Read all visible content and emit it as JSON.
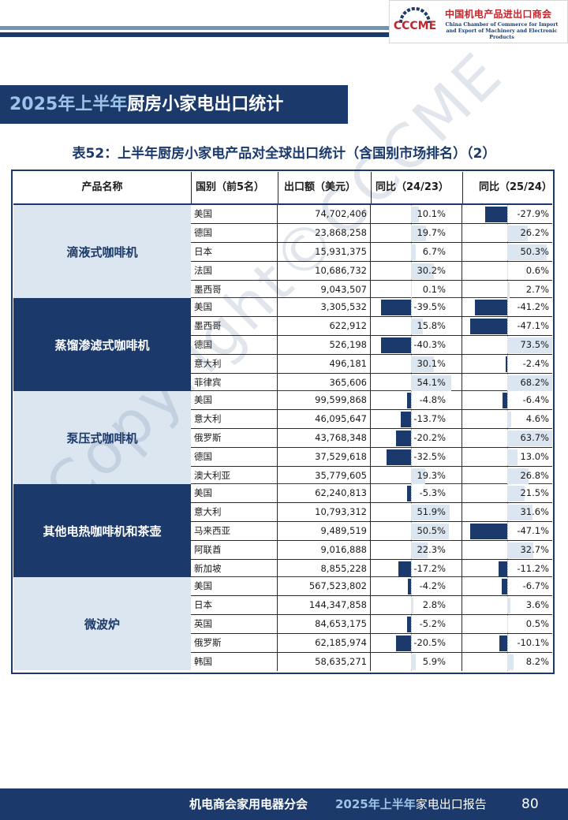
{
  "header": {
    "logo_mark": "CCCME",
    "org_cn": "中国机电产品进出口商会",
    "org_en_line1": "China Chamber of Commerce for Import",
    "org_en_line2": "and Export of Machinery and Electronic Products"
  },
  "section_title": {
    "year": "2025年上半年",
    "rest": "厨房小家电出口统计"
  },
  "table_title": "表52：上半年厨房小家电产品对全球出口统计（含国别市场排名）（2）",
  "columns": {
    "product": "产品名称",
    "country": "国别（前5名）",
    "value": "出口额（美元）",
    "g1": "同比（24/23）",
    "g2": "同比（25/24）"
  },
  "colors": {
    "dark": "#1b3a6b",
    "light": "#dce6f1"
  },
  "groups": [
    {
      "name": "滴液式咖啡机",
      "style": "light",
      "rows": [
        {
          "country": "美国",
          "value": "74,702,406",
          "g1": 10.1,
          "g1_text": "10.1%",
          "g2": -27.9,
          "g2_text": "-27.9%"
        },
        {
          "country": "德国",
          "value": "23,868,258",
          "g1": 19.7,
          "g1_text": "19.7%",
          "g2": 26.2,
          "g2_text": "26.2%"
        },
        {
          "country": "日本",
          "value": "15,931,375",
          "g1": 6.7,
          "g1_text": "6.7%",
          "g2": 50.3,
          "g2_text": "50.3%"
        },
        {
          "country": "法国",
          "value": "10,686,732",
          "g1": 30.2,
          "g1_text": "30.2%",
          "g2": 0.6,
          "g2_text": "0.6%"
        },
        {
          "country": "墨西哥",
          "value": "9,043,507",
          "g1": 0.1,
          "g1_text": "0.1%",
          "g2": 2.7,
          "g2_text": "2.7%"
        }
      ]
    },
    {
      "name": "蒸馏渗滤式咖啡机",
      "style": "dark",
      "rows": [
        {
          "country": "美国",
          "value": "3,305,532",
          "g1": -39.5,
          "g1_text": "-39.5%",
          "g2": -41.2,
          "g2_text": "-41.2%"
        },
        {
          "country": "墨西哥",
          "value": "622,912",
          "g1": 15.8,
          "g1_text": "15.8%",
          "g2": -47.1,
          "g2_text": "-47.1%"
        },
        {
          "country": "德国",
          "value": "526,198",
          "g1": -40.3,
          "g1_text": "-40.3%",
          "g2": 73.5,
          "g2_text": "73.5%"
        },
        {
          "country": "意大利",
          "value": "496,181",
          "g1": 30.1,
          "g1_text": "30.1%",
          "g2": -2.4,
          "g2_text": "-2.4%"
        },
        {
          "country": "菲律宾",
          "value": "365,606",
          "g1": 54.1,
          "g1_text": "54.1%",
          "g2": 68.2,
          "g2_text": "68.2%"
        }
      ]
    },
    {
      "name": "泵压式咖啡机",
      "style": "light",
      "rows": [
        {
          "country": "美国",
          "value": "99,599,868",
          "g1": -4.8,
          "g1_text": "-4.8%",
          "g2": -6.4,
          "g2_text": "-6.4%"
        },
        {
          "country": "意大利",
          "value": "46,095,647",
          "g1": -13.7,
          "g1_text": "-13.7%",
          "g2": 4.6,
          "g2_text": "4.6%"
        },
        {
          "country": "俄罗斯",
          "value": "43,768,348",
          "g1": -20.2,
          "g1_text": "-20.2%",
          "g2": 63.7,
          "g2_text": "63.7%"
        },
        {
          "country": "德国",
          "value": "37,529,618",
          "g1": -32.5,
          "g1_text": "-32.5%",
          "g2": 13.0,
          "g2_text": "13.0%"
        },
        {
          "country": "澳大利亚",
          "value": "35,779,605",
          "g1": 19.3,
          "g1_text": "19.3%",
          "g2": 26.8,
          "g2_text": "26.8%"
        }
      ]
    },
    {
      "name": "其他电热咖啡机和茶壶",
      "style": "dark",
      "rows": [
        {
          "country": "美国",
          "value": "62,240,813",
          "g1": -5.3,
          "g1_text": "-5.3%",
          "g2": 21.5,
          "g2_text": "21.5%"
        },
        {
          "country": "意大利",
          "value": "10,793,312",
          "g1": 51.9,
          "g1_text": "51.9%",
          "g2": 31.6,
          "g2_text": "31.6%"
        },
        {
          "country": "马来西亚",
          "value": "9,489,519",
          "g1": 50.5,
          "g1_text": "50.5%",
          "g2": -47.1,
          "g2_text": "-47.1%"
        },
        {
          "country": "阿联酋",
          "value": "9,016,888",
          "g1": 22.3,
          "g1_text": "22.3%",
          "g2": 32.7,
          "g2_text": "32.7%"
        },
        {
          "country": "新加坡",
          "value": "8,855,228",
          "g1": -17.2,
          "g1_text": "-17.2%",
          "g2": -11.2,
          "g2_text": "-11.2%"
        }
      ]
    },
    {
      "name": "微波炉",
      "style": "light",
      "rows": [
        {
          "country": "美国",
          "value": "567,523,802",
          "g1": -4.2,
          "g1_text": "-4.2%",
          "g2": -6.7,
          "g2_text": "-6.7%"
        },
        {
          "country": "日本",
          "value": "144,347,858",
          "g1": 2.8,
          "g1_text": "2.8%",
          "g2": 3.6,
          "g2_text": "3.6%"
        },
        {
          "country": "英国",
          "value": "84,653,175",
          "g1": -5.2,
          "g1_text": "-5.2%",
          "g2": 0.5,
          "g2_text": "0.5%"
        },
        {
          "country": "俄罗斯",
          "value": "62,185,974",
          "g1": -20.5,
          "g1_text": "-20.5%",
          "g2": -10.1,
          "g2_text": "-10.1%"
        },
        {
          "country": "韩国",
          "value": "58,635,271",
          "g1": 5.9,
          "g1_text": "5.9%",
          "g2": 8.2,
          "g2_text": "8.2%"
        }
      ]
    }
  ],
  "watermark": "Copyright©CCCME",
  "footer": {
    "org": "机电商会家用电器分会",
    "year": "2025年上半年",
    "report": "家电出口报告",
    "page": "80"
  }
}
